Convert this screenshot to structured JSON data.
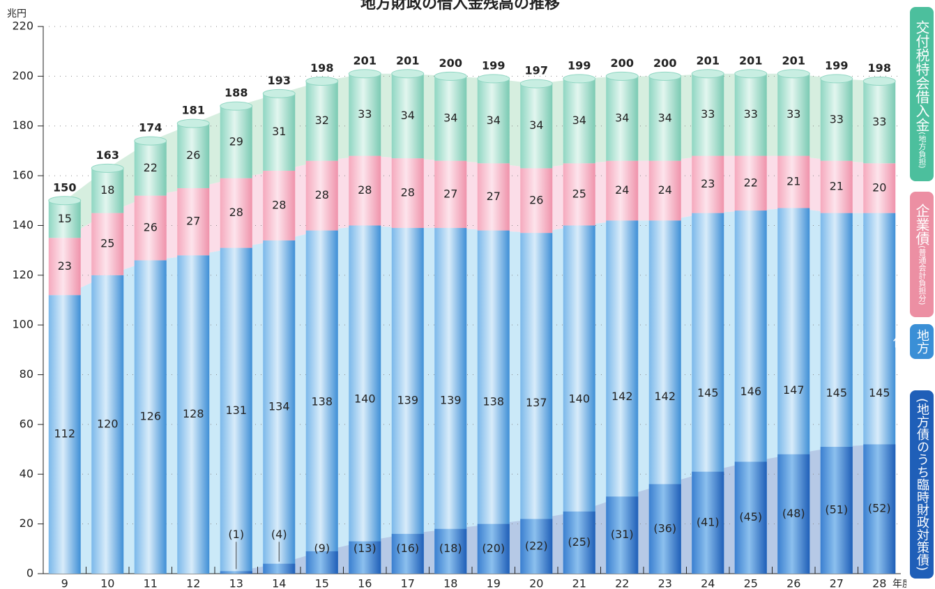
{
  "chart_data": {
    "type": "stacked_bar",
    "title": "地方財政の借入金残高の推移",
    "y_label": "兆円",
    "x_label": "年度",
    "categories": [
      "9",
      "10",
      "11",
      "12",
      "13",
      "14",
      "15",
      "16",
      "17",
      "18",
      "19",
      "20",
      "21",
      "22",
      "23",
      "24",
      "25",
      "26",
      "27",
      "28"
    ],
    "ylim": [
      0,
      220
    ],
    "yticks": [
      0,
      20,
      40,
      60,
      80,
      100,
      120,
      140,
      160,
      180,
      200,
      220
    ],
    "grid": true,
    "series": [
      {
        "name": "地方債",
        "color": "#4f9fe0",
        "area": "#cbe9f8",
        "values": [
          112,
          120,
          126,
          128,
          131,
          134,
          138,
          140,
          139,
          139,
          138,
          137,
          140,
          142,
          142,
          145,
          146,
          147,
          145,
          145
        ]
      },
      {
        "name": "企業債",
        "sub": "(普通会計負担分)",
        "color": "#f5a9bd",
        "area": "#fbdde8",
        "values": [
          23,
          25,
          26,
          27,
          28,
          28,
          28,
          28,
          28,
          27,
          27,
          26,
          25,
          24,
          24,
          23,
          22,
          21,
          21,
          20
        ]
      },
      {
        "name": "交付税特会借入金",
        "sub": "(地方負担)",
        "color": "#8fd6c2",
        "area": "#d6eedf",
        "values": [
          15,
          18,
          22,
          26,
          29,
          31,
          32,
          33,
          34,
          34,
          34,
          34,
          34,
          34,
          34,
          33,
          33,
          33,
          33,
          33
        ]
      }
    ],
    "subset": {
      "name": "(地方債のうち臨時財政対策債)",
      "color": "#2c6cc2",
      "area": "#b6c9e6",
      "values": [
        null,
        null,
        null,
        null,
        1,
        4,
        9,
        13,
        16,
        18,
        20,
        22,
        25,
        31,
        36,
        41,
        45,
        48,
        51,
        52
      ],
      "value_labels": [
        null,
        null,
        null,
        null,
        "(1)",
        "(4)",
        "(9)",
        "(13)",
        "(16)",
        "(18)",
        "(20)",
        "(22)",
        "(25)",
        "(31)",
        "(36)",
        "(41)",
        "(45)",
        "(48)",
        "(51)",
        "(52)"
      ]
    },
    "totals": [
      150,
      163,
      174,
      181,
      188,
      193,
      198,
      201,
      201,
      200,
      199,
      197,
      199,
      200,
      200,
      201,
      201,
      201,
      199,
      198
    ]
  }
}
